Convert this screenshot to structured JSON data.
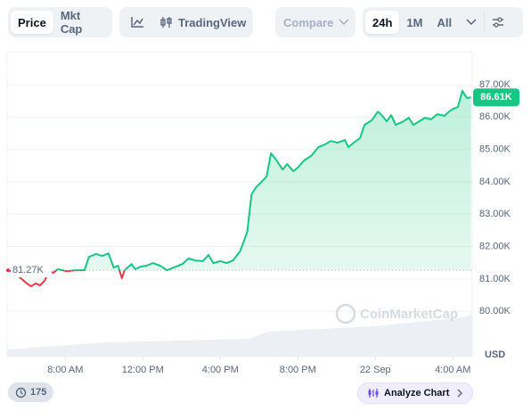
{
  "toolbar": {
    "view_tabs": [
      "Price",
      "Mkt Cap"
    ],
    "tradingview": "TradingView",
    "compare": "Compare",
    "ranges": [
      "24h",
      "1M",
      "All"
    ]
  },
  "footer": {
    "badge": "175",
    "analyze": "Analyze Chart"
  },
  "chart_data": {
    "type": "line",
    "watermark": "CoinMarketCap",
    "y_unit": "USD",
    "up_color": "#16c784",
    "down_color": "#ea3943",
    "baseline": {
      "value": 81270,
      "label": "81.27K"
    },
    "current": {
      "value": 86610,
      "label": "86.61K"
    },
    "xlim": [
      5,
      29
    ],
    "ylim": [
      78600,
      88020
    ],
    "xticks": [
      {
        "value": 8,
        "label": "8:00 AM"
      },
      {
        "value": 12,
        "label": "12:00 PM"
      },
      {
        "value": 16,
        "label": "4:00 PM"
      },
      {
        "value": 20,
        "label": "8:00 PM"
      },
      {
        "value": 24,
        "label": "22 Sep"
      },
      {
        "value": 28,
        "label": "4:00 AM"
      }
    ],
    "yticks": [
      {
        "value": 80000,
        "label": "80.00K"
      },
      {
        "value": 81000,
        "label": "81.00K"
      },
      {
        "value": 82000,
        "label": "82.00K"
      },
      {
        "value": 83000,
        "label": "83.00K"
      },
      {
        "value": 84000,
        "label": "84.00K"
      },
      {
        "value": 85000,
        "label": "85.00K"
      },
      {
        "value": 86000,
        "label": "86.00K"
      },
      {
        "value": 87000,
        "label": "87.00K"
      }
    ],
    "grid": true,
    "x": [
      5.0,
      5.32,
      6.01,
      6.24,
      6.47,
      6.7,
      6.93,
      7.16,
      7.39,
      7.61,
      8.07,
      8.53,
      8.99,
      9.22,
      9.59,
      9.91,
      10.23,
      10.5,
      10.73,
      10.92,
      11.06,
      11.42,
      11.61,
      11.88,
      12.2,
      12.52,
      12.89,
      13.26,
      13.58,
      14.04,
      14.36,
      14.72,
      15.09,
      15.39,
      15.64,
      16.01,
      16.33,
      16.65,
      17.02,
      17.39,
      17.61,
      17.84,
      18.17,
      18.39,
      18.62,
      18.85,
      19.22,
      19.45,
      19.77,
      20.0,
      20.32,
      20.69,
      21.06,
      21.38,
      21.7,
      22.06,
      22.43,
      22.61,
      22.89,
      23.21,
      23.44,
      23.81,
      24.13,
      24.36,
      24.59,
      24.82,
      25.05,
      25.37,
      25.73,
      25.96,
      26.19,
      26.56,
      26.88,
      27.2,
      27.57,
      27.8,
      28.03,
      28.26,
      28.49,
      28.72,
      28.94
    ],
    "series": [
      {
        "name": "Price",
        "values": [
          81270,
          81220,
          80860,
          80770,
          80860,
          80800,
          80940,
          81240,
          81190,
          81300,
          81240,
          81270,
          81270,
          81680,
          81770,
          81710,
          81790,
          81350,
          81410,
          81020,
          81270,
          81460,
          81300,
          81380,
          81410,
          81490,
          81410,
          81270,
          81350,
          81460,
          81630,
          81570,
          81550,
          81740,
          81490,
          81550,
          81490,
          81570,
          81850,
          82450,
          83610,
          83830,
          84020,
          84160,
          84880,
          84710,
          84380,
          84550,
          84330,
          84440,
          84660,
          84800,
          85070,
          85150,
          85260,
          85210,
          85290,
          85070,
          85210,
          85350,
          85760,
          85900,
          86170,
          86040,
          85870,
          86060,
          85760,
          85840,
          85980,
          85760,
          85840,
          85980,
          85930,
          86090,
          86040,
          86170,
          86260,
          86310,
          86810,
          86590,
          86610
        ]
      }
    ]
  }
}
